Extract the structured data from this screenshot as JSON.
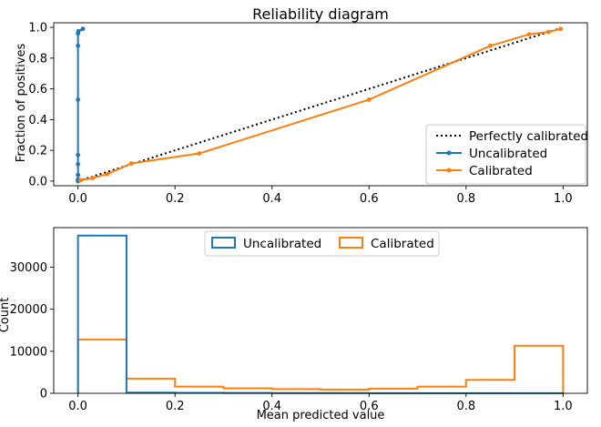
{
  "chart_data": [
    {
      "type": "line",
      "title": "Reliability diagram",
      "xlabel": "",
      "ylabel": "Fraction of positives",
      "xlim": [
        -0.05,
        1.05
      ],
      "ylim": [
        -0.03,
        1.03
      ],
      "xticks": [
        0.0,
        0.2,
        0.4,
        0.6,
        0.8,
        1.0
      ],
      "xtick_labels": [
        "0.0",
        "0.2",
        "0.4",
        "0.6",
        "0.8",
        "1.0"
      ],
      "yticks": [
        0.0,
        0.2,
        0.4,
        0.6,
        0.8,
        1.0
      ],
      "ytick_labels": [
        "0.0",
        "0.2",
        "0.4",
        "0.6",
        "0.8",
        "1.0"
      ],
      "grid": false,
      "legend_position": "lower-right",
      "series": [
        {
          "name": "Perfectly calibrated",
          "style": "dotted",
          "color": "#000000",
          "x": [
            0.0,
            1.0
          ],
          "y": [
            0.0,
            1.0
          ]
        },
        {
          "name": "Uncalibrated",
          "style": "line-marker",
          "color": "#1f77b4",
          "x": [
            0.0,
            0.0,
            0.0,
            0.0,
            0.0,
            0.0,
            0.0,
            0.0,
            0.001,
            0.01
          ],
          "y": [
            0.0,
            0.01,
            0.04,
            0.11,
            0.17,
            0.53,
            0.88,
            0.96,
            0.975,
            0.99
          ]
        },
        {
          "name": "Calibrated",
          "style": "line-marker",
          "color": "#ff7f0e",
          "x": [
            0.005,
            0.03,
            0.06,
            0.11,
            0.25,
            0.6,
            0.85,
            0.93,
            0.97,
            0.995
          ],
          "y": [
            0.005,
            0.02,
            0.045,
            0.115,
            0.18,
            0.53,
            0.88,
            0.955,
            0.97,
            0.99
          ]
        }
      ]
    },
    {
      "type": "bar",
      "title": "",
      "xlabel": "Mean predicted value",
      "ylabel": "Count",
      "xlim": [
        -0.05,
        1.05
      ],
      "ylim": [
        0,
        39400
      ],
      "xticks": [
        0.0,
        0.2,
        0.4,
        0.6,
        0.8,
        1.0
      ],
      "xtick_labels": [
        "0.0",
        "0.2",
        "0.4",
        "0.6",
        "0.8",
        "1.0"
      ],
      "yticks": [
        0,
        10000,
        20000,
        30000
      ],
      "ytick_labels": [
        "0",
        "10000",
        "20000",
        "30000"
      ],
      "grid": false,
      "legend_position": "top-center",
      "bin_edges": [
        0.0,
        0.1,
        0.2,
        0.3,
        0.4,
        0.5,
        0.6,
        0.7,
        0.8,
        0.9,
        1.0
      ],
      "series": [
        {
          "name": "Uncalibrated",
          "style": "step",
          "color": "#1f77b4",
          "values": [
            37500,
            150,
            100,
            80,
            60,
            50,
            40,
            40,
            30,
            20
          ]
        },
        {
          "name": "Calibrated",
          "style": "step",
          "color": "#ff7f0e",
          "values": [
            12800,
            3500,
            1600,
            1200,
            1000,
            900,
            1100,
            1600,
            3200,
            11300
          ]
        }
      ]
    }
  ]
}
